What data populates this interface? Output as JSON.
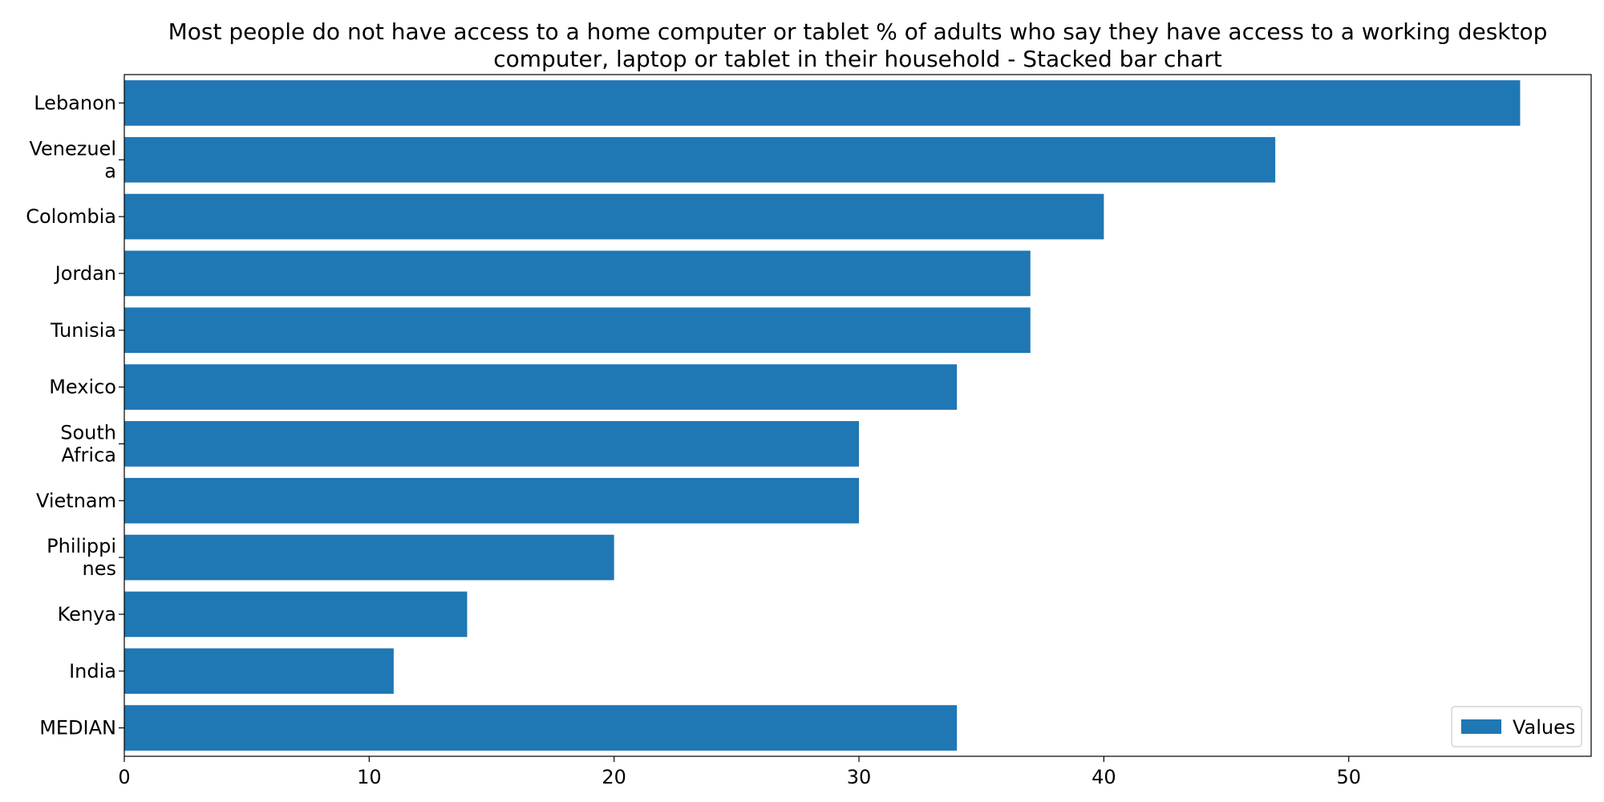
{
  "chart_data": {
    "type": "bar",
    "orientation": "horizontal",
    "title": "Most people do not have access to a home computer or tablet % of adults who say they have access to a working desktop computer, laptop or tablet in their household  - Stacked bar chart",
    "title_lines": [
      "Most people do not have access to a home computer or tablet % of adults who say they have access to a working desktop",
      "computer, laptop or tablet in their household  - Stacked bar chart"
    ],
    "categories": [
      "Lebanon",
      "Venezuela",
      "Colombia",
      "Jordan",
      "Tunisia",
      "Mexico",
      "South Africa",
      "Vietnam",
      "Philippines",
      "Kenya",
      "India",
      "MEDIAN"
    ],
    "category_label_lines": [
      [
        "Lebanon"
      ],
      [
        "Venezuel",
        "a"
      ],
      [
        "Colombia"
      ],
      [
        "Jordan"
      ],
      [
        "Tunisia"
      ],
      [
        "Mexico"
      ],
      [
        "South",
        "Africa"
      ],
      [
        "Vietnam"
      ],
      [
        "Philippi",
        "nes"
      ],
      [
        "Kenya"
      ],
      [
        "India"
      ],
      [
        "MEDIAN"
      ]
    ],
    "series": [
      {
        "name": "Values",
        "values": [
          57,
          47,
          40,
          37,
          37,
          34,
          30,
          30,
          20,
          14,
          11,
          34
        ]
      }
    ],
    "xlabel": "",
    "ylabel": "",
    "xlim": [
      0,
      59.9
    ],
    "x_ticks": [
      0,
      10,
      20,
      30,
      40,
      50
    ],
    "grid": false,
    "legend_position": "bottom-right",
    "colors": {
      "bar": "#1f77b4",
      "axis": "#000000",
      "background": "#ffffff"
    }
  }
}
